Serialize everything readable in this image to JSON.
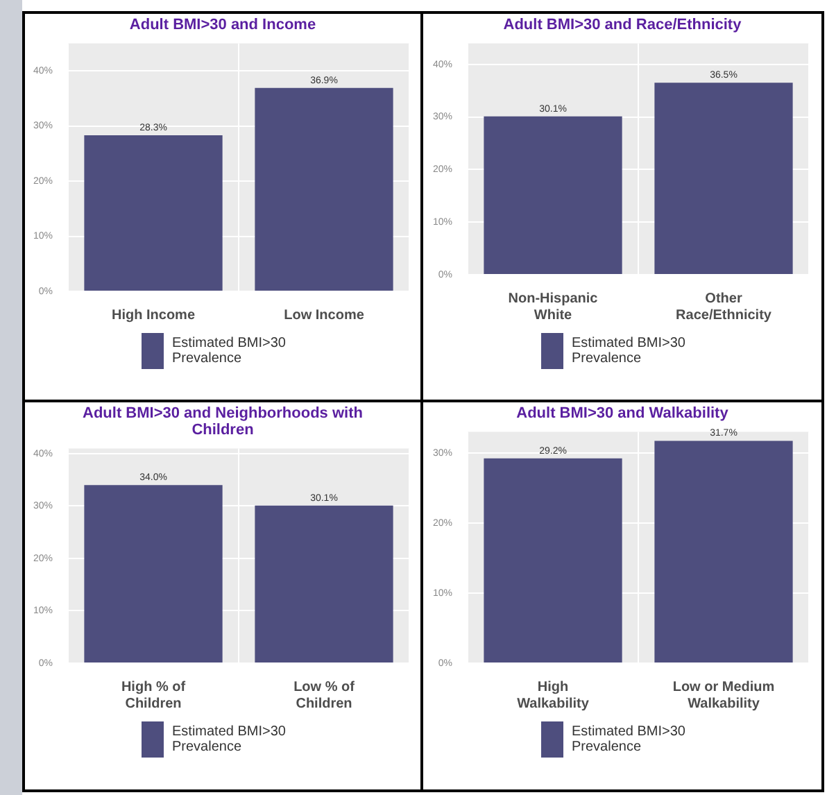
{
  "chart_data": [
    {
      "type": "bar",
      "title": "Adult BMI>30 and Income",
      "categories": [
        "High Income",
        "Low Income"
      ],
      "series": [
        {
          "name": "Estimated BMI>30 Prevalence",
          "color": "#4e4e7e",
          "values": [
            28.3,
            36.9
          ],
          "value_labels": [
            "28.3%",
            "36.9%"
          ]
        }
      ],
      "ylim": [
        0,
        45
      ],
      "yticks": [
        {
          "value": 0,
          "label": "0%"
        },
        {
          "value": 10,
          "label": "10%"
        },
        {
          "value": 20,
          "label": "20%"
        },
        {
          "value": 30,
          "label": "30%"
        },
        {
          "value": 40,
          "label": "40%"
        }
      ],
      "grid": true,
      "legend": "bottom"
    },
    {
      "type": "bar",
      "title": "Adult BMI>30 and Race/Ethnicity",
      "categories": [
        "Non-Hispanic White",
        "Other Race/Ethnicity"
      ],
      "series": [
        {
          "name": "Estimated BMI>30 Prevalence",
          "color": "#4e4e7e",
          "values": [
            30.1,
            36.5
          ],
          "value_labels": [
            "30.1%",
            "36.5%"
          ]
        }
      ],
      "ylim": [
        0,
        44
      ],
      "yticks": [
        {
          "value": 0,
          "label": "0%"
        },
        {
          "value": 10,
          "label": "10%"
        },
        {
          "value": 20,
          "label": "20%"
        },
        {
          "value": 30,
          "label": "30%"
        },
        {
          "value": 40,
          "label": "40%"
        }
      ],
      "grid": true,
      "legend": "bottom"
    },
    {
      "type": "bar",
      "title": "Adult BMI>30 and Neighborhoods with Children",
      "categories": [
        "High % of Children",
        "Low % of Children"
      ],
      "series": [
        {
          "name": "Estimated BMI>30 Prevalence",
          "color": "#4e4e7e",
          "values": [
            34.0,
            30.1
          ],
          "value_labels": [
            "34.0%",
            "30.1%"
          ]
        }
      ],
      "ylim": [
        0,
        41
      ],
      "yticks": [
        {
          "value": 0,
          "label": "0%"
        },
        {
          "value": 10,
          "label": "10%"
        },
        {
          "value": 20,
          "label": "20%"
        },
        {
          "value": 30,
          "label": "30%"
        },
        {
          "value": 40,
          "label": "40%"
        }
      ],
      "grid": true,
      "legend": "bottom"
    },
    {
      "type": "bar",
      "title": "Adult BMI>30 and Walkability",
      "categories": [
        "High Walkability",
        "Low or Medium Walkability"
      ],
      "series": [
        {
          "name": "Estimated BMI>30 Prevalence",
          "color": "#4e4e7e",
          "values": [
            29.2,
            31.7
          ],
          "value_labels": [
            "29.2%",
            "31.7%"
          ]
        }
      ],
      "ylim": [
        0,
        33
      ],
      "yticks": [
        {
          "value": 0,
          "label": "0%"
        },
        {
          "value": 10,
          "label": "10%"
        },
        {
          "value": 20,
          "label": "20%"
        },
        {
          "value": 30,
          "label": "30%"
        }
      ],
      "grid": true,
      "legend": "bottom"
    }
  ]
}
